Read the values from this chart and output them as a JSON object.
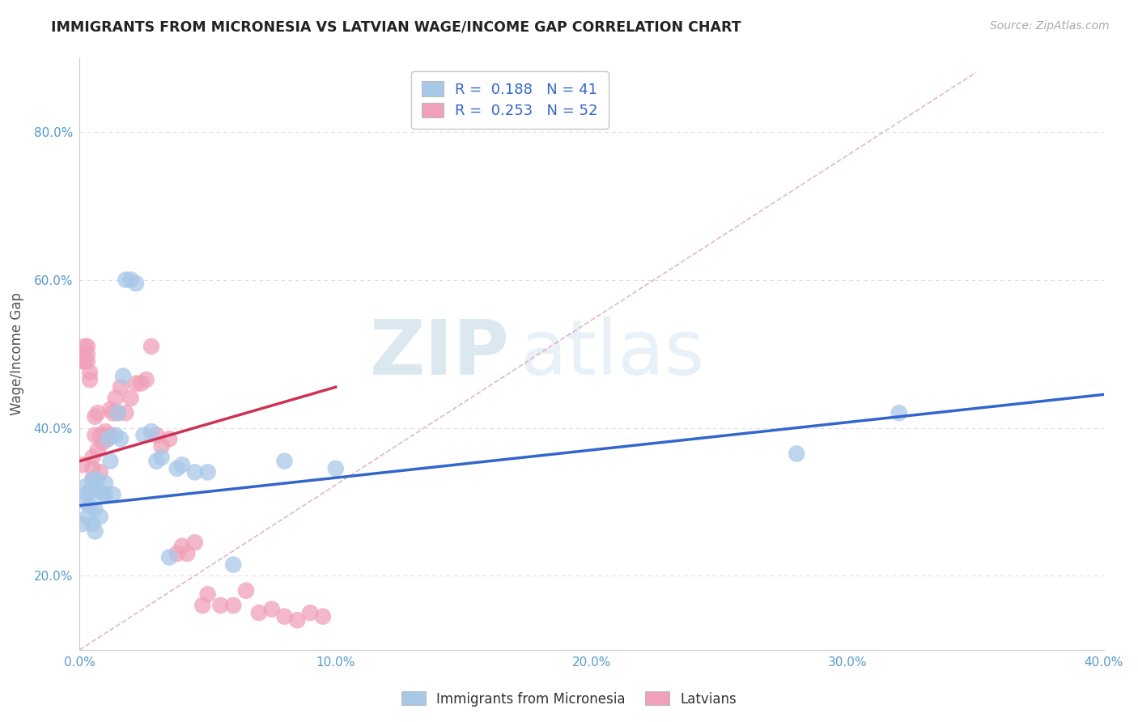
{
  "title": "IMMIGRANTS FROM MICRONESIA VS LATVIAN WAGE/INCOME GAP CORRELATION CHART",
  "source": "Source: ZipAtlas.com",
  "ylabel": "Wage/Income Gap",
  "xlim": [
    0.0,
    0.4
  ],
  "ylim": [
    0.1,
    0.9
  ],
  "xticks": [
    0.0,
    0.1,
    0.2,
    0.3,
    0.4
  ],
  "yticks": [
    0.2,
    0.4,
    0.6,
    0.8
  ],
  "xtick_labels": [
    "0.0%",
    "10.0%",
    "20.0%",
    "30.0%",
    "40.0%"
  ],
  "ytick_labels": [
    "20.0%",
    "40.0%",
    "60.0%",
    "80.0%"
  ],
  "blue_color": "#a8c8e8",
  "pink_color": "#f0a0b8",
  "blue_line_color": "#3366cc",
  "pink_line_color": "#cc3355",
  "diag_line_color": "#e0b0c0",
  "legend_blue_label": "R =  0.188   N = 41",
  "legend_pink_label": "R =  0.253   N = 52",
  "legend1_label": "Immigrants from Micronesia",
  "legend2_label": "Latvians",
  "watermark_zip": "ZIP",
  "watermark_atlas": "atlas",
  "background_color": "#ffffff",
  "grid_color": "#dddddd",
  "blue_x": [
    0.001,
    0.002,
    0.002,
    0.003,
    0.003,
    0.004,
    0.004,
    0.005,
    0.005,
    0.006,
    0.006,
    0.007,
    0.007,
    0.008,
    0.009,
    0.01,
    0.01,
    0.011,
    0.012,
    0.013,
    0.014,
    0.015,
    0.016,
    0.017,
    0.018,
    0.02,
    0.022,
    0.025,
    0.028,
    0.03,
    0.032,
    0.035,
    0.038,
    0.04,
    0.045,
    0.05,
    0.06,
    0.08,
    0.1,
    0.28,
    0.32
  ],
  "blue_y": [
    0.27,
    0.3,
    0.32,
    0.28,
    0.31,
    0.295,
    0.315,
    0.27,
    0.33,
    0.26,
    0.29,
    0.33,
    0.315,
    0.28,
    0.31,
    0.31,
    0.325,
    0.385,
    0.355,
    0.31,
    0.39,
    0.42,
    0.385,
    0.47,
    0.6,
    0.6,
    0.595,
    0.39,
    0.395,
    0.355,
    0.36,
    0.225,
    0.345,
    0.35,
    0.34,
    0.34,
    0.215,
    0.355,
    0.345,
    0.365,
    0.42
  ],
  "pink_x": [
    0.001,
    0.001,
    0.002,
    0.002,
    0.003,
    0.003,
    0.003,
    0.004,
    0.004,
    0.005,
    0.005,
    0.005,
    0.006,
    0.006,
    0.007,
    0.007,
    0.008,
    0.008,
    0.009,
    0.01,
    0.01,
    0.011,
    0.012,
    0.012,
    0.013,
    0.014,
    0.015,
    0.016,
    0.018,
    0.02,
    0.022,
    0.024,
    0.026,
    0.028,
    0.03,
    0.032,
    0.035,
    0.038,
    0.04,
    0.042,
    0.045,
    0.048,
    0.05,
    0.055,
    0.06,
    0.065,
    0.07,
    0.075,
    0.08,
    0.085,
    0.09,
    0.095
  ],
  "pink_y": [
    0.35,
    0.49,
    0.49,
    0.51,
    0.49,
    0.5,
    0.51,
    0.465,
    0.475,
    0.33,
    0.345,
    0.36,
    0.39,
    0.415,
    0.37,
    0.42,
    0.34,
    0.39,
    0.38,
    0.39,
    0.395,
    0.385,
    0.39,
    0.425,
    0.42,
    0.44,
    0.42,
    0.455,
    0.42,
    0.44,
    0.46,
    0.46,
    0.465,
    0.51,
    0.39,
    0.375,
    0.385,
    0.23,
    0.24,
    0.23,
    0.245,
    0.16,
    0.175,
    0.16,
    0.16,
    0.18,
    0.15,
    0.155,
    0.145,
    0.14,
    0.15,
    0.145
  ],
  "blue_line_x0": 0.0,
  "blue_line_y0": 0.295,
  "blue_line_x1": 0.4,
  "blue_line_y1": 0.445,
  "pink_line_x0": 0.0,
  "pink_line_y0": 0.355,
  "pink_line_x1": 0.1,
  "pink_line_y1": 0.455
}
